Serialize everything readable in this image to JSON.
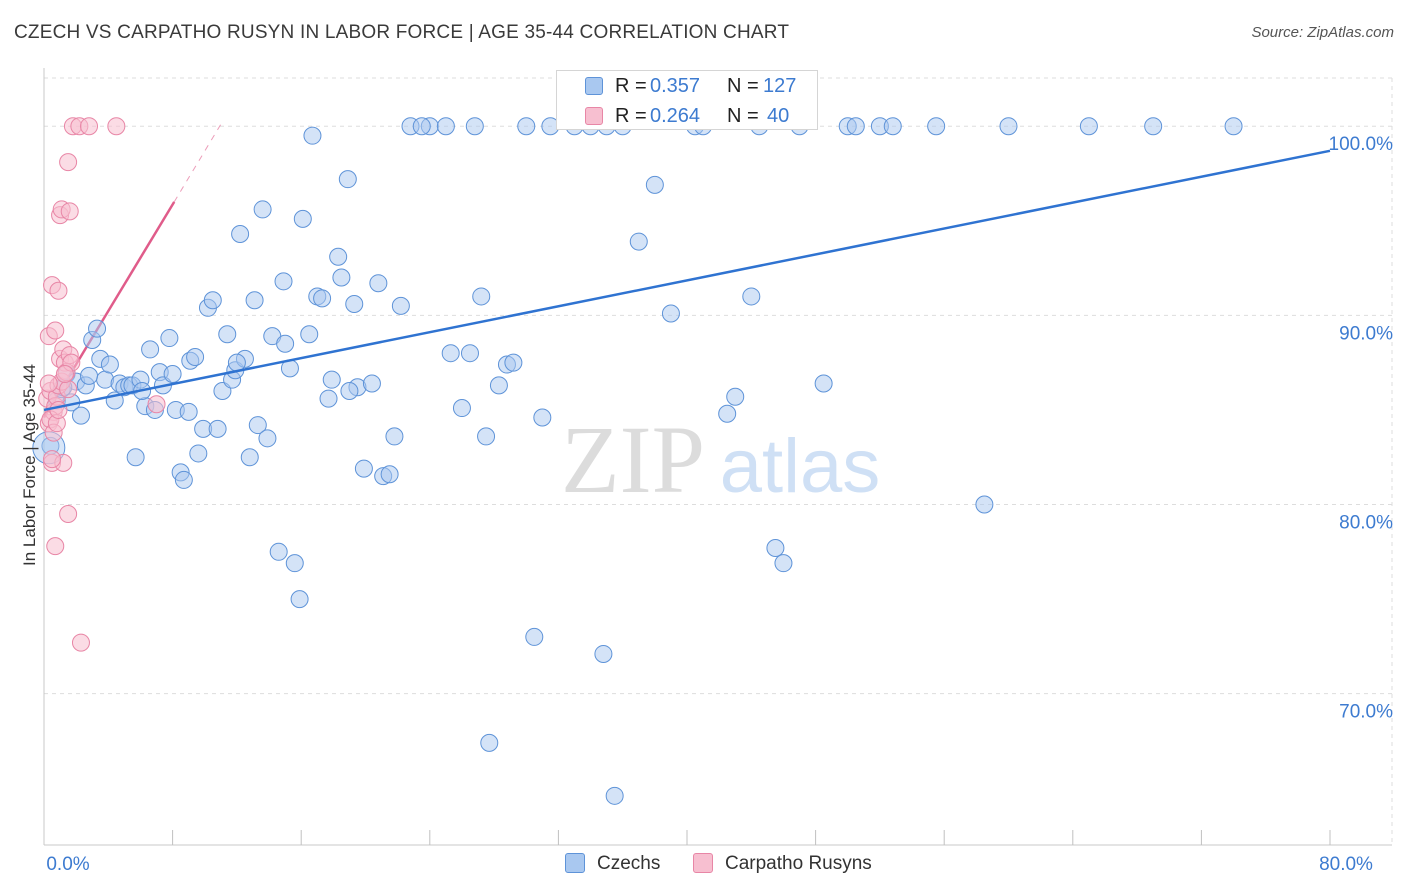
{
  "title": "CZECH VS CARPATHO RUSYN IN LABOR FORCE | AGE 35-44 CORRELATION CHART",
  "source": "Source: ZipAtlas.com",
  "watermark": {
    "zip": "ZIP",
    "atlas": "atlas"
  },
  "legend_top": [
    {
      "r_label": "R =",
      "r_value": "0.357",
      "n_label": "N =",
      "n_value": "127"
    },
    {
      "r_label": "R =",
      "r_value": "0.264",
      "n_label": "N =",
      "n_value": "40"
    }
  ],
  "legend_bottom": {
    "czechs": "Czechs",
    "rusyns": "Carpatho Rusyns"
  },
  "colors": {
    "czech_fill": "#a9c8f0",
    "czech_stroke": "#5e93d8",
    "czech_line": "#2f73d1",
    "rusyn_fill": "#f7bfd0",
    "rusyn_stroke": "#e886a6",
    "rusyn_line": "#e05c8a",
    "tick_text": "#3d7bd0",
    "grid": "#dddddd"
  },
  "chart_data": {
    "type": "scatter",
    "title": "CZECH VS CARPATHO RUSYN IN LABOR FORCE | AGE 35-44 CORRELATION CHART",
    "xlabel": "",
    "ylabel": "In Labor Force | Age 35-44",
    "xlim": [
      0,
      80
    ],
    "ylim": [
      62,
      103.5
    ],
    "x_tick_labels": [
      {
        "value": 0,
        "label": "0.0%"
      },
      {
        "value": 80,
        "label": "80.0%"
      }
    ],
    "y_tick_labels": [
      {
        "value": 70,
        "label": "70.0%"
      },
      {
        "value": 80,
        "label": "80.0%"
      },
      {
        "value": 90,
        "label": "90.0%"
      },
      {
        "value": 100,
        "label": "100.0%"
      }
    ],
    "x_minor_ticks": [
      8,
      16,
      24,
      32,
      40,
      48,
      56,
      64,
      72,
      80
    ],
    "series": [
      {
        "name": "Czechs",
        "r": 0.357,
        "n": 127,
        "trend": {
          "x": [
            0,
            80
          ],
          "y": [
            85.0,
            98.7
          ]
        },
        "points": [
          [
            0.4,
            83.1
          ],
          [
            0.8,
            85.5
          ],
          [
            1.1,
            86.1
          ],
          [
            1.4,
            86.9
          ],
          [
            1.7,
            85.4
          ],
          [
            2.0,
            86.5
          ],
          [
            2.3,
            84.7
          ],
          [
            2.6,
            86.3
          ],
          [
            3.0,
            88.7
          ],
          [
            3.3,
            89.3
          ],
          [
            3.5,
            87.7
          ],
          [
            3.8,
            86.6
          ],
          [
            4.1,
            87.4
          ],
          [
            4.4,
            85.5
          ],
          [
            4.7,
            86.4
          ],
          [
            5.0,
            86.2
          ],
          [
            5.3,
            86.3
          ],
          [
            5.5,
            86.3
          ],
          [
            5.7,
            82.5
          ],
          [
            6.0,
            86.6
          ],
          [
            6.3,
            85.2
          ],
          [
            6.6,
            88.2
          ],
          [
            6.9,
            85.0
          ],
          [
            7.2,
            87.0
          ],
          [
            7.4,
            86.3
          ],
          [
            7.8,
            88.8
          ],
          [
            8.0,
            86.9
          ],
          [
            8.2,
            85.0
          ],
          [
            8.5,
            81.7
          ],
          [
            8.7,
            81.3
          ],
          [
            9.1,
            87.6
          ],
          [
            9.4,
            87.8
          ],
          [
            9.6,
            82.7
          ],
          [
            9.9,
            84.0
          ],
          [
            10.2,
            90.4
          ],
          [
            10.5,
            90.8
          ],
          [
            10.8,
            84.0
          ],
          [
            11.1,
            86.0
          ],
          [
            11.4,
            89.0
          ],
          [
            11.7,
            86.6
          ],
          [
            11.9,
            87.1
          ],
          [
            12.2,
            94.3
          ],
          [
            12.5,
            87.7
          ],
          [
            12.8,
            82.5
          ],
          [
            13.1,
            90.8
          ],
          [
            13.3,
            84.2
          ],
          [
            13.6,
            95.6
          ],
          [
            13.9,
            83.5
          ],
          [
            14.2,
            88.9
          ],
          [
            14.6,
            77.5
          ],
          [
            14.9,
            91.8
          ],
          [
            15.3,
            87.2
          ],
          [
            15.6,
            76.9
          ],
          [
            15.9,
            75.0
          ],
          [
            16.1,
            95.1
          ],
          [
            16.5,
            89.0
          ],
          [
            16.7,
            99.5
          ],
          [
            17.0,
            91.0
          ],
          [
            17.3,
            90.9
          ],
          [
            17.7,
            85.6
          ],
          [
            17.9,
            86.6
          ],
          [
            18.3,
            93.1
          ],
          [
            18.5,
            92.0
          ],
          [
            18.9,
            97.2
          ],
          [
            19.3,
            90.6
          ],
          [
            19.5,
            86.2
          ],
          [
            19.9,
            81.9
          ],
          [
            20.4,
            86.4
          ],
          [
            20.8,
            91.7
          ],
          [
            21.1,
            81.5
          ],
          [
            21.5,
            81.6
          ],
          [
            21.8,
            83.6
          ],
          [
            22.2,
            90.5
          ],
          [
            22.8,
            100.0
          ],
          [
            24.0,
            100.0
          ],
          [
            25.0,
            100.0
          ],
          [
            25.3,
            88.0
          ],
          [
            26.0,
            85.1
          ],
          [
            26.5,
            88.0
          ],
          [
            27.2,
            91.0
          ],
          [
            27.5,
            83.6
          ],
          [
            27.7,
            67.4
          ],
          [
            28.3,
            86.3
          ],
          [
            28.8,
            87.4
          ],
          [
            29.2,
            87.5
          ],
          [
            30.5,
            73.0
          ],
          [
            31.0,
            84.6
          ],
          [
            31.5,
            100.0
          ],
          [
            33.0,
            100.0
          ],
          [
            34.0,
            100.0
          ],
          [
            34.8,
            72.1
          ],
          [
            35.5,
            64.6
          ],
          [
            36.0,
            100.0
          ],
          [
            37.0,
            93.9
          ],
          [
            38.0,
            96.9
          ],
          [
            39.0,
            90.1
          ],
          [
            40.5,
            100.0
          ],
          [
            41.0,
            100.0
          ],
          [
            42.5,
            84.8
          ],
          [
            43.0,
            85.7
          ],
          [
            44.0,
            91.0
          ],
          [
            45.5,
            77.7
          ],
          [
            46.0,
            76.9
          ],
          [
            47.0,
            100.0
          ],
          [
            48.5,
            86.4
          ],
          [
            50.0,
            100.0
          ],
          [
            52.0,
            100.0
          ],
          [
            52.8,
            100.0
          ],
          [
            55.5,
            100.0
          ],
          [
            58.5,
            80.0
          ],
          [
            60.0,
            100.0
          ],
          [
            65.0,
            100.0
          ],
          [
            69.0,
            100.0
          ],
          [
            74.0,
            100.0
          ],
          [
            1.2,
            86.2
          ],
          [
            2.8,
            86.8
          ],
          [
            6.1,
            86.0
          ],
          [
            9.0,
            84.9
          ],
          [
            12.0,
            87.5
          ],
          [
            15.0,
            88.5
          ],
          [
            19.0,
            86.0
          ],
          [
            23.5,
            100.0
          ],
          [
            26.8,
            100.0
          ],
          [
            30.0,
            100.0
          ],
          [
            35.0,
            100.0
          ],
          [
            44.5,
            100.0
          ],
          [
            50.5,
            100.0
          ]
        ]
      },
      {
        "name": "Carpatho Rusyns",
        "r": 0.264,
        "n": 40,
        "trend": {
          "x": [
            0,
            8.1
          ],
          "y": [
            84.6,
            96.0
          ]
        },
        "trend_dashed": {
          "x": [
            8.1,
            11.0
          ],
          "y": [
            96.0,
            100.1
          ]
        },
        "points": [
          [
            0.2,
            85.6
          ],
          [
            0.3,
            84.3
          ],
          [
            0.4,
            86.0
          ],
          [
            0.5,
            82.2
          ],
          [
            0.6,
            84.9
          ],
          [
            0.7,
            85.2
          ],
          [
            0.8,
            85.7
          ],
          [
            0.9,
            86.3
          ],
          [
            1.0,
            87.7
          ],
          [
            1.1,
            86.5
          ],
          [
            1.2,
            88.2
          ],
          [
            1.3,
            87.5
          ],
          [
            1.4,
            87.0
          ],
          [
            1.5,
            86.1
          ],
          [
            1.6,
            87.9
          ],
          [
            1.7,
            87.5
          ],
          [
            0.3,
            88.9
          ],
          [
            0.5,
            91.6
          ],
          [
            0.7,
            89.2
          ],
          [
            0.9,
            91.3
          ],
          [
            1.0,
            95.3
          ],
          [
            1.1,
            95.6
          ],
          [
            1.5,
            98.1
          ],
          [
            1.6,
            95.5
          ],
          [
            1.8,
            100.0
          ],
          [
            2.2,
            100.0
          ],
          [
            2.8,
            100.0
          ],
          [
            4.5,
            100.0
          ],
          [
            1.5,
            79.5
          ],
          [
            0.7,
            77.8
          ],
          [
            2.3,
            72.7
          ],
          [
            7.0,
            85.3
          ],
          [
            0.4,
            84.5
          ],
          [
            0.6,
            83.8
          ],
          [
            0.8,
            84.3
          ],
          [
            1.2,
            82.2
          ],
          [
            0.3,
            86.4
          ],
          [
            0.9,
            85.0
          ],
          [
            1.3,
            86.9
          ],
          [
            0.5,
            82.4
          ]
        ]
      }
    ]
  }
}
